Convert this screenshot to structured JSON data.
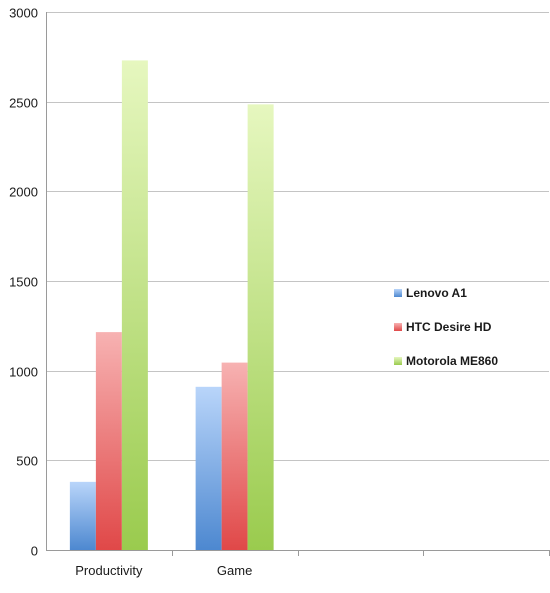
{
  "chart_data": {
    "type": "bar",
    "title": "",
    "xlabel": "",
    "ylabel": "",
    "categories": [
      "Productivity",
      "Game"
    ],
    "series": [
      {
        "name": "Lenovo A1",
        "values": [
          380,
          910
        ],
        "color": "#6fa0e0"
      },
      {
        "name": "HTC Desire HD",
        "values": [
          1215,
          1045
        ],
        "color": "#ec7b7b"
      },
      {
        "name": "Motorola ME860",
        "values": [
          2730,
          2485
        ],
        "color": "#b9e07a"
      }
    ],
    "ylim": [
      0,
      3000
    ],
    "yticks": [
      0,
      500,
      1000,
      1500,
      2000,
      2500,
      3000
    ],
    "grid": true,
    "legend_position": "right",
    "empty_slots": 2
  }
}
